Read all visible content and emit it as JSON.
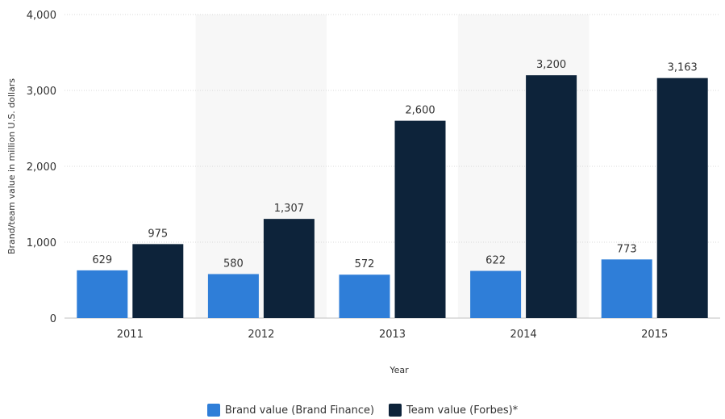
{
  "chart_data": {
    "type": "bar",
    "categories": [
      "2011",
      "2012",
      "2013",
      "2014",
      "2015"
    ],
    "series": [
      {
        "name": "Brand value (Brand Finance)",
        "color": "#2f7ed8",
        "values": [
          629,
          580,
          572,
          622,
          773
        ]
      },
      {
        "name": "Team value (Forbes)*",
        "color": "#0d233a",
        "values": [
          975,
          1307,
          2600,
          3200,
          3163
        ]
      }
    ],
    "data_labels": [
      [
        "629",
        "580",
        "572",
        "622",
        "773"
      ],
      [
        "975",
        "1,307",
        "2,600",
        "3,200",
        "3,163"
      ]
    ],
    "title": "",
    "xlabel": "Year",
    "ylabel": "Brand/team value in million U.S. dollars",
    "ylim": [
      0,
      4000
    ],
    "yticks": [
      0,
      1000,
      2000,
      3000,
      4000
    ],
    "ytick_labels": [
      "0",
      "1,000",
      "2,000",
      "3,000",
      "4,000"
    ],
    "grid": true,
    "legend_position": "bottom-center",
    "band_color": "#f7f7f7",
    "grid_color": "#d8d8d8"
  }
}
